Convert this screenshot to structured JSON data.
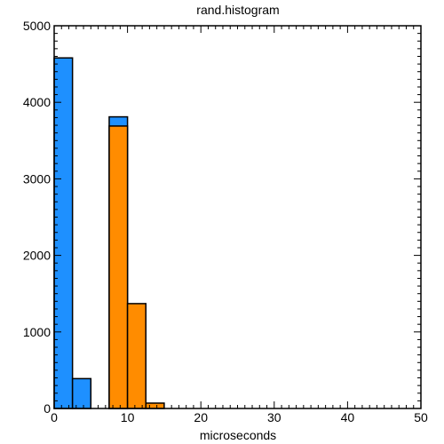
{
  "chart_data": {
    "type": "bar",
    "title": "rand.histogram",
    "xlabel": "microseconds",
    "ylabel": "",
    "xlim": [
      0,
      50
    ],
    "ylim": [
      0,
      5000
    ],
    "x_ticks": [
      "0",
      "10",
      "20",
      "30",
      "40",
      "50"
    ],
    "y_ticks": [
      "0",
      "1000",
      "2000",
      "3000",
      "4000",
      "5000"
    ],
    "bin_width": 2.5,
    "grid": false,
    "legend": "none",
    "series": [
      {
        "color": "#1e90ff",
        "bins": [
          {
            "x0": 0.0,
            "x1": 2.5,
            "value": 4580
          },
          {
            "x0": 2.5,
            "x1": 5.0,
            "value": 390
          },
          {
            "x0": 7.5,
            "x1": 10.0,
            "value": 3810
          }
        ]
      },
      {
        "color": "#ff8c00",
        "bins": [
          {
            "x0": 7.5,
            "x1": 10.0,
            "value": 3690
          },
          {
            "x0": 10.0,
            "x1": 12.5,
            "value": 1370
          },
          {
            "x0": 12.5,
            "x1": 15.0,
            "value": 70
          }
        ]
      }
    ]
  }
}
